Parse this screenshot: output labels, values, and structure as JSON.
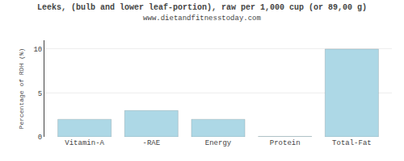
{
  "chart_data": {
    "type": "bar",
    "title": "Leeks, (bulb and lower leaf-portion), raw per 1,000 cup (or 89,00 g)",
    "subtitle": "www.dietandfitnesstoday.com",
    "categories": [
      "Vitamin-A",
      "-RAE",
      "Energy",
      "Protein",
      "Total-Fat"
    ],
    "values": [
      2.0,
      3.0,
      2.0,
      0.05,
      10.0
    ],
    "color": "#add8e6",
    "ylabel": "Percentage of RDH (%)",
    "ylim": [
      0,
      11
    ],
    "yticks": [
      0,
      5,
      10
    ],
    "grid": true
  }
}
